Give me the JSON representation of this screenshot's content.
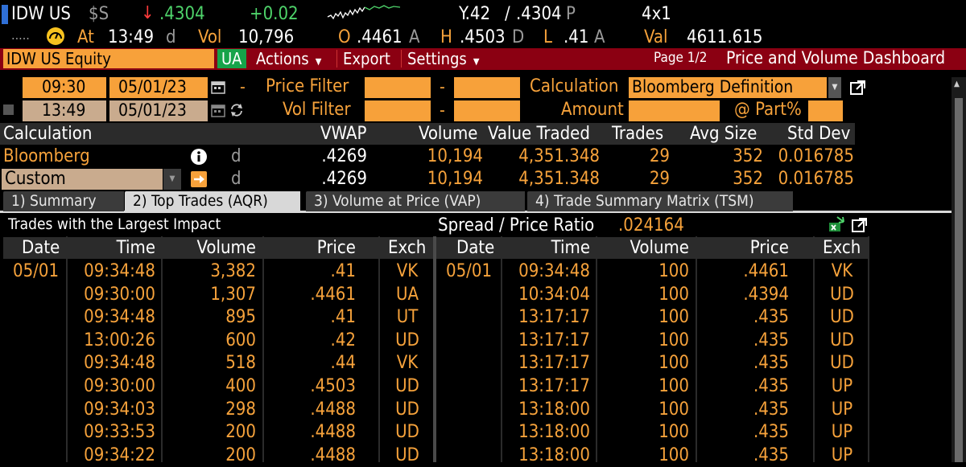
{
  "ticker_row": {
    "ticker": "IDW US",
    "currency": "$S",
    "down_arrow": "↓",
    "last": ".4304",
    "change": "+0.02",
    "yield": "Y.42",
    "slash": "/",
    "last2": ".4304",
    "p_flag": "P",
    "size": "4x1"
  },
  "info_row": {
    "dots": ".....",
    "at_label": "At",
    "time": "13:49",
    "time_flag": "d",
    "vol_label": "Vol",
    "vol": "10,796",
    "open_label": "O",
    "open": ".4461",
    "open_flag": "A",
    "high_label": "H",
    "high": ".4503",
    "high_flag": "D",
    "low_label": "L",
    "low": ".41",
    "low_flag": "A",
    "val_label": "Val",
    "val": "4611.615"
  },
  "menu": {
    "security": "IDW US Equity",
    "exchange": "UA",
    "actions": "Actions",
    "export": "Export",
    "settings": "Settings",
    "page": "Page 1/2",
    "title": "Price and Volume Dashboard"
  },
  "filters": {
    "start_time": "09:30",
    "start_date": "05/01/23",
    "end_time": "13:49",
    "end_date": "05/01/23",
    "dash": "-",
    "price_filter_label": "Price Filter",
    "vol_filter_label": "Vol Filter",
    "calc_label": "Calculation",
    "calc_value": "Bloomberg Definition",
    "amount_label": "Amount",
    "part_label": "@ Part%"
  },
  "summary": {
    "headers": {
      "calculation": "Calculation",
      "vwap": "VWAP",
      "volume": "Volume",
      "value_traded": "Value Traded",
      "trades": "Trades",
      "avg_size": "Avg Size",
      "std_dev": "Std Dev"
    },
    "rows": [
      {
        "name": "Bloomberg",
        "flag": "d",
        "vwap": ".4269",
        "volume": "10,194",
        "value": "4,351.348",
        "trades": "29",
        "avg": "352",
        "std": "0.016785"
      },
      {
        "name": "Custom",
        "flag": "d",
        "vwap": ".4269",
        "volume": "10,194",
        "value": "4,351.348",
        "trades": "29",
        "avg": "352",
        "std": "0.016785"
      }
    ]
  },
  "tabs": [
    {
      "label": "1) Summary"
    },
    {
      "label": "2) Top Trades (AQR)"
    },
    {
      "label": "3) Volume at Price (VAP)"
    },
    {
      "label": "4) Trade Summary Matrix (TSM)"
    }
  ],
  "trades_panel": {
    "title": "Trades with the Largest Impact",
    "spread_label": "Spread / Price Ratio",
    "spread_value": ".024164",
    "headers": {
      "date": "Date",
      "time": "Time",
      "volume": "Volume",
      "price": "Price",
      "exch": "Exch"
    },
    "left": [
      {
        "date": "05/01",
        "time": "09:34:48",
        "volume": "3,382",
        "price": ".41",
        "exch": "VK"
      },
      {
        "date": "",
        "time": "09:30:00",
        "volume": "1,307",
        "price": ".4461",
        "exch": "UA"
      },
      {
        "date": "",
        "time": "09:34:48",
        "volume": "895",
        "price": ".41",
        "exch": "UT"
      },
      {
        "date": "",
        "time": "13:00:26",
        "volume": "600",
        "price": ".42",
        "exch": "UD"
      },
      {
        "date": "",
        "time": "09:34:48",
        "volume": "518",
        "price": ".44",
        "exch": "VK"
      },
      {
        "date": "",
        "time": "09:30:00",
        "volume": "400",
        "price": ".4503",
        "exch": "UD"
      },
      {
        "date": "",
        "time": "09:34:03",
        "volume": "298",
        "price": ".4488",
        "exch": "UD"
      },
      {
        "date": "",
        "time": "09:33:53",
        "volume": "200",
        "price": ".4488",
        "exch": "UD"
      },
      {
        "date": "",
        "time": "09:34:22",
        "volume": "200",
        "price": ".4488",
        "exch": "UD"
      }
    ],
    "right": [
      {
        "date": "05/01",
        "time": "09:34:48",
        "volume": "100",
        "price": ".4461",
        "exch": "VK"
      },
      {
        "date": "",
        "time": "10:34:04",
        "volume": "100",
        "price": ".4394",
        "exch": "UD"
      },
      {
        "date": "",
        "time": "13:17:17",
        "volume": "100",
        "price": ".435",
        "exch": "UD"
      },
      {
        "date": "",
        "time": "13:17:17",
        "volume": "100",
        "price": ".435",
        "exch": "UD"
      },
      {
        "date": "",
        "time": "13:17:17",
        "volume": "100",
        "price": ".435",
        "exch": "UD"
      },
      {
        "date": "",
        "time": "13:17:17",
        "volume": "100",
        "price": ".435",
        "exch": "UP"
      },
      {
        "date": "",
        "time": "13:18:00",
        "volume": "100",
        "price": ".435",
        "exch": "UP"
      },
      {
        "date": "",
        "time": "13:18:00",
        "volume": "100",
        "price": ".435",
        "exch": "UP"
      },
      {
        "date": "",
        "time": "13:18:00",
        "volume": "100",
        "price": ".435",
        "exch": "UP"
      }
    ]
  },
  "icons": [
    "calendar-icon",
    "refresh-icon",
    "info-icon",
    "arrow-out-icon",
    "popout-icon",
    "excel-icon",
    "sparkline-icon",
    "gauge-icon"
  ],
  "colors": {
    "accent": "#f6a23b",
    "positive": "#4ed36a",
    "negative": "#ff3b3b",
    "menu_bar": "#8b0012"
  }
}
